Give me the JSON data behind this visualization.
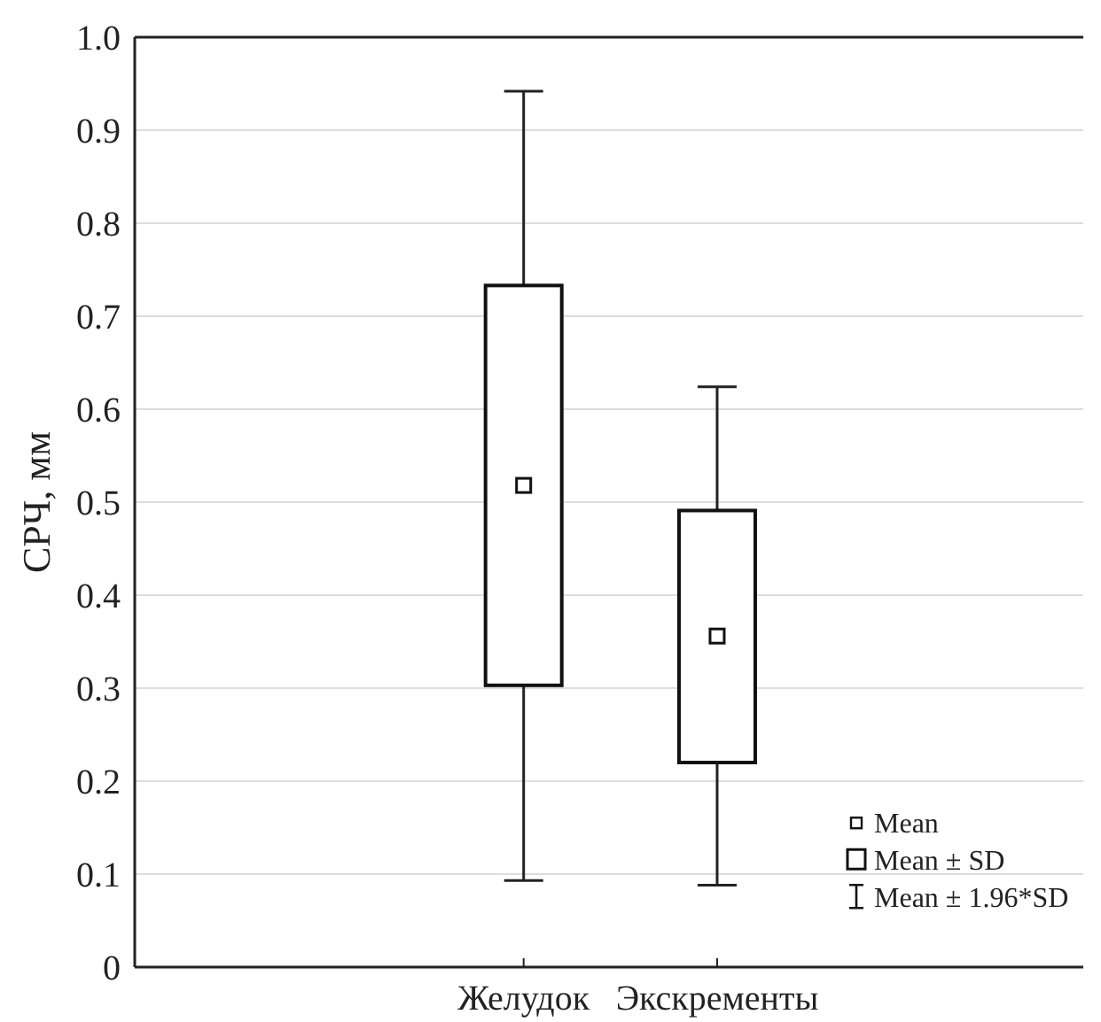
{
  "chart_data": {
    "type": "box",
    "ylabel": "СРЧ, мм",
    "categories": [
      "Желудок",
      "Экскременты"
    ],
    "boxes": [
      {
        "low": 0.093,
        "q1": 0.303,
        "q3": 0.733,
        "high": 0.942,
        "mean": 0.518
      },
      {
        "low": 0.088,
        "q1": 0.22,
        "q3": 0.491,
        "high": 0.624,
        "mean": 0.356
      }
    ],
    "ylim": [
      0,
      1
    ],
    "yticks": [
      0,
      0.1,
      0.2,
      0.3,
      0.4,
      0.5,
      0.6,
      0.7,
      0.8,
      0.9,
      {
        "value": 1,
        "label": "1.0"
      }
    ],
    "grid": "y",
    "annotations": [
      "Mean",
      "Mean ± SD",
      "Mean ± 1.96*SD"
    ]
  }
}
